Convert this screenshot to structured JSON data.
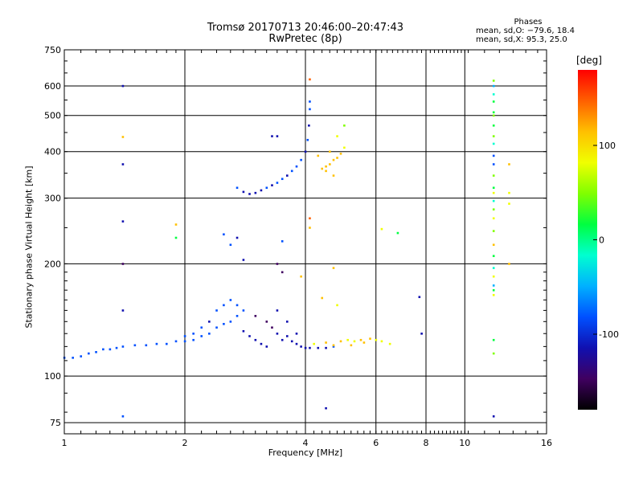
{
  "chart_data": {
    "type": "scatter",
    "title": "Tromsø 20170713 20:46:00–20:47:43",
    "subtitle": "RwPretec (8p)",
    "xlabel": "Frequency [MHz]",
    "ylabel": "Stationary phase Virtual Height [km]",
    "x_scale": "log",
    "y_scale": "log",
    "xlim": [
      1,
      16
    ],
    "ylim": [
      70,
      750
    ],
    "x_ticks": [
      1,
      2,
      4,
      6,
      8,
      10,
      16
    ],
    "y_ticks": [
      75,
      100,
      200,
      300,
      400,
      500,
      600,
      750
    ],
    "grid": true,
    "stats": {
      "heading": "Phases",
      "line1": "mean, sd,O: −79.6, 18.4",
      "line2": "mean, sd,X:  95.3, 25.0"
    },
    "colorbar": {
      "label": "[deg]",
      "range": [
        -180,
        180
      ],
      "ticks": [
        100,
        0,
        -100
      ],
      "colors": [
        "#000000",
        "#400060",
        "#1010b0",
        "#0050ff",
        "#00b0ff",
        "#00ffd0",
        "#00ff40",
        "#80ff00",
        "#f0ff00",
        "#ffc000",
        "#ff6000",
        "#ff0000"
      ]
    },
    "series": [
      {
        "points": [
          [
            1.0,
            112,
            -95
          ],
          [
            1.05,
            112,
            -90
          ],
          [
            1.1,
            113,
            -85
          ],
          [
            1.15,
            115,
            -90
          ],
          [
            1.2,
            116,
            -88
          ],
          [
            1.25,
            118,
            -92
          ],
          [
            1.3,
            118,
            -85
          ],
          [
            1.35,
            119,
            -80
          ],
          [
            1.4,
            120,
            -88
          ],
          [
            1.5,
            121,
            -85
          ],
          [
            1.6,
            121,
            -95
          ],
          [
            1.7,
            122,
            -88
          ],
          [
            1.8,
            122,
            -92
          ],
          [
            1.9,
            124,
            -86
          ],
          [
            2.0,
            124,
            -85
          ],
          [
            2.1,
            125,
            -90
          ],
          [
            2.2,
            128,
            -88
          ],
          [
            2.3,
            130,
            -80
          ],
          [
            2.4,
            135,
            -85
          ],
          [
            2.5,
            138,
            -90
          ],
          [
            2.6,
            140,
            -88
          ],
          [
            2.7,
            145,
            -92
          ],
          [
            2.4,
            150,
            -90
          ],
          [
            2.5,
            155,
            -70
          ],
          [
            2.6,
            160,
            -80
          ],
          [
            2.7,
            155,
            -85
          ],
          [
            2.8,
            150,
            -88
          ],
          [
            2.3,
            140,
            -100
          ],
          [
            2.2,
            135,
            -95
          ],
          [
            2.1,
            130,
            -92
          ],
          [
            2.0,
            128,
            -90
          ],
          [
            2.8,
            132,
            -120
          ],
          [
            2.9,
            128,
            -125
          ],
          [
            3.0,
            125,
            -130
          ],
          [
            3.1,
            122,
            -120
          ],
          [
            3.2,
            120,
            -130
          ],
          [
            3.3,
            135,
            -140
          ],
          [
            3.4,
            130,
            -120
          ],
          [
            3.5,
            125,
            -115
          ],
          [
            3.6,
            128,
            -130
          ],
          [
            3.7,
            124,
            -110
          ],
          [
            3.8,
            122,
            -115
          ],
          [
            3.9,
            120,
            -118
          ],
          [
            4.0,
            119,
            -115
          ],
          [
            4.1,
            119,
            -112
          ],
          [
            4.3,
            119,
            -105
          ],
          [
            4.5,
            119,
            -100
          ],
          [
            4.7,
            120,
            -85
          ],
          [
            3.0,
            145,
            -140
          ],
          [
            3.2,
            140,
            -150
          ],
          [
            3.4,
            150,
            -130
          ],
          [
            3.6,
            140,
            -120
          ],
          [
            3.8,
            130,
            -115
          ]
        ]
      },
      {
        "points": [
          [
            2.7,
            320,
            -95
          ],
          [
            2.8,
            312,
            -100
          ],
          [
            2.9,
            308,
            -110
          ],
          [
            3.0,
            310,
            -105
          ],
          [
            3.1,
            315,
            -100
          ],
          [
            3.2,
            320,
            -95
          ],
          [
            3.3,
            325,
            -100
          ],
          [
            3.4,
            330,
            -90
          ],
          [
            3.5,
            338,
            -95
          ],
          [
            3.6,
            345,
            -100
          ],
          [
            3.7,
            355,
            -95
          ],
          [
            3.8,
            365,
            -90
          ],
          [
            3.9,
            380,
            -95
          ],
          [
            4.0,
            400,
            -100
          ],
          [
            4.05,
            430,
            -95
          ],
          [
            4.08,
            470,
            -100
          ],
          [
            4.1,
            520,
            -95
          ],
          [
            4.1,
            545,
            -90
          ],
          [
            3.3,
            440,
            -130
          ],
          [
            3.4,
            440,
            -120
          ],
          [
            3.5,
            230,
            -80
          ],
          [
            3.5,
            190,
            -140
          ],
          [
            2.6,
            225,
            -90
          ],
          [
            2.5,
            240,
            -95
          ],
          [
            2.7,
            235,
            -120
          ],
          [
            2.8,
            205,
            -100
          ],
          [
            3.4,
            200,
            -150
          ]
        ]
      },
      {
        "points": [
          [
            4.4,
            360,
            120
          ],
          [
            4.5,
            365,
            110
          ],
          [
            4.6,
            370,
            115
          ],
          [
            4.7,
            380,
            100
          ],
          [
            4.8,
            385,
            120
          ],
          [
            4.9,
            395,
            125
          ],
          [
            5.0,
            410,
            90
          ],
          [
            4.8,
            440,
            80
          ],
          [
            5.0,
            470,
            60
          ],
          [
            4.3,
            390,
            105
          ],
          [
            4.5,
            355,
            130
          ],
          [
            4.7,
            345,
            120
          ],
          [
            4.6,
            400,
            110
          ],
          [
            4.1,
            250,
            130
          ],
          [
            4.1,
            265,
            140
          ],
          [
            4.1,
            625,
            150
          ],
          [
            4.7,
            195,
            110
          ],
          [
            3.9,
            185,
            110
          ],
          [
            4.4,
            162,
            100
          ],
          [
            4.8,
            155,
            90
          ],
          [
            4.2,
            122,
            95
          ],
          [
            4.5,
            123,
            100
          ],
          [
            4.9,
            124,
            110
          ],
          [
            5.1,
            125,
            80
          ],
          [
            5.3,
            124,
            95
          ],
          [
            5.5,
            125,
            100
          ],
          [
            5.8,
            126,
            110
          ],
          [
            6.0,
            125,
            90
          ],
          [
            6.2,
            124,
            80
          ],
          [
            6.5,
            122,
            75
          ],
          [
            5.6,
            123,
            120
          ],
          [
            5.2,
            121,
            115
          ],
          [
            4.7,
            121,
            130
          ],
          [
            6.2,
            248,
            90
          ],
          [
            6.8,
            242,
            20
          ]
        ]
      },
      {
        "points": [
          [
            11.8,
            620,
            40
          ],
          [
            11.8,
            600,
            -60
          ],
          [
            11.8,
            570,
            -20
          ],
          [
            11.8,
            545,
            30
          ],
          [
            11.8,
            510,
            10
          ],
          [
            11.8,
            500,
            60
          ],
          [
            11.8,
            470,
            20
          ],
          [
            11.8,
            440,
            50
          ],
          [
            11.8,
            420,
            -30
          ],
          [
            11.8,
            390,
            -80
          ],
          [
            11.8,
            370,
            -70
          ],
          [
            11.8,
            345,
            40
          ],
          [
            11.8,
            320,
            20
          ],
          [
            11.8,
            310,
            80
          ],
          [
            11.8,
            295,
            -20
          ],
          [
            11.8,
            280,
            60
          ],
          [
            11.8,
            265,
            70
          ],
          [
            11.8,
            245,
            40
          ],
          [
            11.8,
            225,
            100
          ],
          [
            11.8,
            210,
            20
          ],
          [
            11.8,
            195,
            -10
          ],
          [
            11.8,
            185,
            70
          ],
          [
            11.8,
            175,
            -40
          ],
          [
            11.8,
            170,
            10
          ],
          [
            11.8,
            165,
            90
          ],
          [
            11.8,
            125,
            20
          ],
          [
            11.8,
            115,
            60
          ],
          [
            11.8,
            78,
            -110
          ],
          [
            12.9,
            370,
            100
          ],
          [
            12.9,
            310,
            70
          ],
          [
            12.9,
            290,
            90
          ],
          [
            12.9,
            200,
            120
          ],
          [
            1.4,
            600,
            -130
          ],
          [
            1.4,
            438,
            100
          ],
          [
            1.4,
            370,
            -110
          ],
          [
            1.4,
            260,
            -120
          ],
          [
            1.4,
            200,
            -140
          ],
          [
            1.4,
            150,
            -100
          ],
          [
            1.4,
            78,
            -90
          ],
          [
            1.9,
            255,
            110
          ],
          [
            1.9,
            235,
            20
          ],
          [
            7.7,
            163,
            -120
          ],
          [
            7.8,
            130,
            -110
          ],
          [
            4.5,
            82,
            -110
          ]
        ]
      }
    ]
  }
}
